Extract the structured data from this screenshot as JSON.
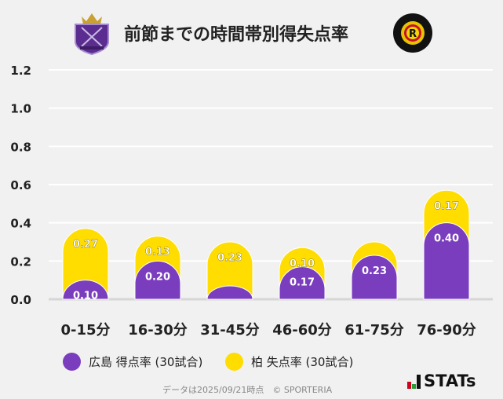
{
  "title": "前節までの時間帯別得失点率",
  "chart_data": {
    "type": "bar",
    "stacked": true,
    "categories": [
      "0-15分",
      "16-30分",
      "31-45分",
      "46-60分",
      "61-75分",
      "76-90分"
    ],
    "series": [
      {
        "name": "広島 得点率 (30試合)",
        "color": "#7a3dbd",
        "values": [
          0.1,
          0.2,
          0.07,
          0.17,
          0.23,
          0.4
        ],
        "labels": [
          "0.10",
          "0.20",
          "",
          "0.17",
          "0.23",
          "0.40"
        ]
      },
      {
        "name": "柏 失点率 (30試合)",
        "color": "#ffdd00",
        "values": [
          0.27,
          0.13,
          0.23,
          0.1,
          0.07,
          0.17
        ],
        "labels": [
          "0.27",
          "0.13",
          "0.23",
          "0.10",
          "",
          "0.17"
        ]
      }
    ],
    "yticks": [
      "0.0",
      "0.2",
      "0.4",
      "0.6",
      "0.8",
      "1.0",
      "1.2"
    ],
    "ylim": [
      0,
      1.2
    ],
    "grid": true,
    "legend": "bottom"
  },
  "legend": {
    "item1": "広島 得点率 (30試合)",
    "item2": "柏 失点率 (30試合)"
  },
  "footer": "データは2025/09/21時点　© SPORTERIA",
  "brand": "STATs",
  "logos": {
    "left": "Sanfrecce Hiroshima crest",
    "right": "KASHIWA REYSOL"
  }
}
